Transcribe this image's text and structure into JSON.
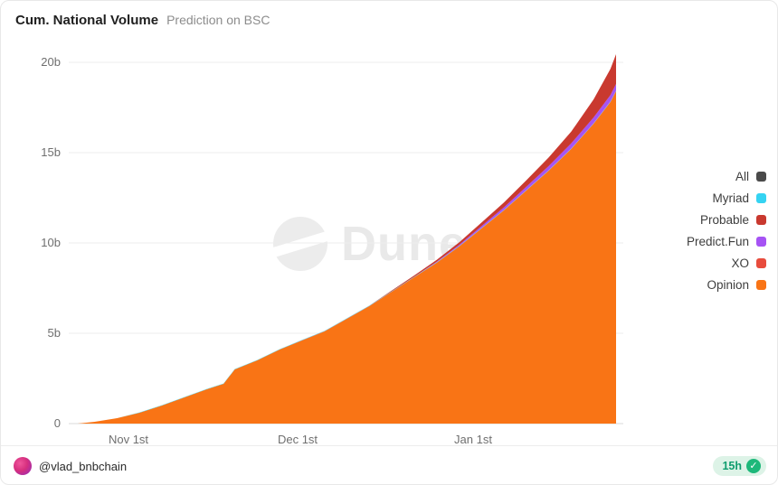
{
  "header": {
    "title": "Cum. National Volume",
    "subtitle": "Prediction on BSC"
  },
  "watermark": {
    "text": "Dune"
  },
  "footer": {
    "handle": "@vlad_bnbchain",
    "age": "15h",
    "seal_check": "✓"
  },
  "legend": {
    "position": "right",
    "items": [
      {
        "label": "All",
        "color": "#4a4a4a"
      },
      {
        "label": "Myriad",
        "color": "#35d3f2"
      },
      {
        "label": "Probable",
        "color": "#c9392f"
      },
      {
        "label": "Predict.Fun",
        "color": "#a653f4"
      },
      {
        "label": "XO",
        "color": "#e84c3d"
      },
      {
        "label": "Opinion",
        "color": "#f97415"
      }
    ]
  },
  "chart_data": {
    "type": "area",
    "stacked": true,
    "title": "Cum. National Volume",
    "subtitle": "Prediction on BSC",
    "grid": "horizontal",
    "ylim": [
      0,
      20
    ],
    "y_unit": "billions",
    "ytick_labels": [
      "0",
      "5b",
      "10b",
      "15b",
      "20b"
    ],
    "xtick_labels": [
      "Nov 1st",
      "Dec 1st",
      "Jan 1st"
    ],
    "x_day_max": 96,
    "x_days": [
      0,
      3,
      7,
      11,
      15,
      19,
      23,
      26,
      28,
      32,
      36,
      40,
      44,
      48,
      52,
      56,
      60,
      64,
      68,
      72,
      76,
      80,
      84,
      88,
      92,
      95,
      96
    ],
    "series": [
      {
        "name": "Opinion",
        "color": "#f97415",
        "values": [
          0,
          0.1,
          0.3,
          0.6,
          1.0,
          1.45,
          1.9,
          2.2,
          3.0,
          3.5,
          4.1,
          4.6,
          5.1,
          5.8,
          6.5,
          7.3,
          8.1,
          8.9,
          9.8,
          10.8,
          11.8,
          12.9,
          14.0,
          15.2,
          16.6,
          17.8,
          18.4
        ]
      },
      {
        "name": "XO",
        "color": "#e84c3d",
        "values": [
          0,
          0,
          0,
          0,
          0,
          0,
          0,
          0,
          0,
          0,
          0,
          0.01,
          0.01,
          0.01,
          0.01,
          0.01,
          0.01,
          0.01,
          0.01,
          0.01,
          0.01,
          0.01,
          0.01,
          0.01,
          0.01,
          0.01,
          0.01
        ]
      },
      {
        "name": "Myriad",
        "color": "#35d3f2",
        "values": [
          0,
          0,
          0,
          0.02,
          0.02,
          0.02,
          0.02,
          0.02,
          0.02,
          0.02,
          0.02,
          0.02,
          0.02,
          0.02,
          0.02,
          0.02,
          0.02,
          0.02,
          0.02,
          0.02,
          0.02,
          0.02,
          0.02,
          0.02,
          0.02,
          0.03,
          0.03
        ]
      },
      {
        "name": "Predict.Fun",
        "color": "#a653f4",
        "values": [
          0,
          0,
          0,
          0,
          0,
          0,
          0,
          0,
          0,
          0,
          0,
          0,
          0,
          0,
          0,
          0,
          0,
          0.03,
          0.06,
          0.1,
          0.14,
          0.18,
          0.23,
          0.28,
          0.32,
          0.35,
          0.36
        ]
      },
      {
        "name": "Probable",
        "color": "#c9392f",
        "values": [
          0,
          0,
          0,
          0,
          0,
          0,
          0,
          0,
          0,
          0,
          0,
          0,
          0,
          0,
          0,
          0.04,
          0.07,
          0.1,
          0.14,
          0.2,
          0.27,
          0.36,
          0.48,
          0.65,
          1.0,
          1.45,
          1.65
        ]
      }
    ]
  }
}
